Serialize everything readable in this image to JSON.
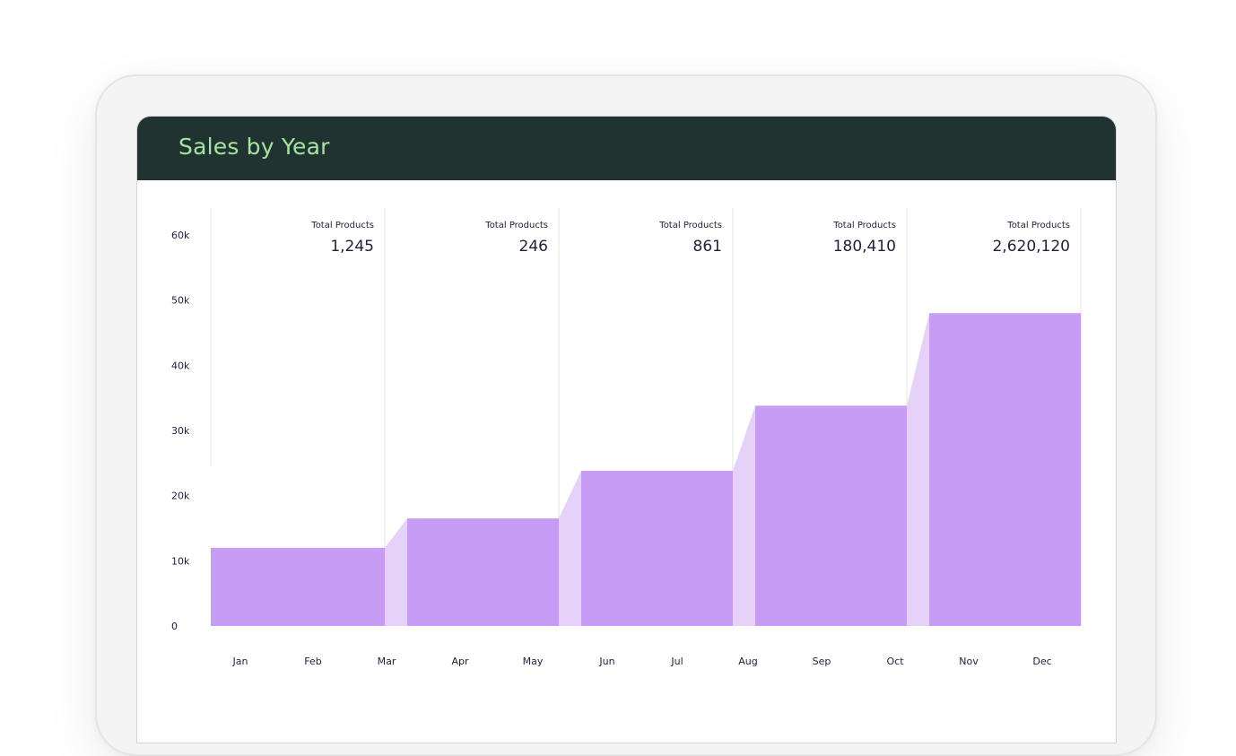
{
  "chart_data": {
    "type": "area",
    "title": "Sales by Year",
    "xlabel": "",
    "ylabel": "",
    "ylim": [
      0,
      60000
    ],
    "y_ticks": [
      "0",
      "10k",
      "20k",
      "30k",
      "40k",
      "50k",
      "60k"
    ],
    "categories": [
      "Jan",
      "Feb",
      "Mar",
      "Apr",
      "May",
      "Jun",
      "Jul",
      "Aug",
      "Sep",
      "Oct",
      "Nov",
      "Dec"
    ],
    "steps": [
      {
        "label": "Total Products",
        "total": "1,245",
        "value": 12000
      },
      {
        "label": "Total Products",
        "total": "246",
        "value": 16500
      },
      {
        "label": "Total Products",
        "total": "861",
        "value": 23800
      },
      {
        "label": "Total Products",
        "total": "180,410",
        "value": 33800
      },
      {
        "label": "Total Products",
        "total": "2,620,120",
        "value": 48000
      }
    ],
    "colors": {
      "bar": "#c79cf4",
      "transition": "#e6d1f9",
      "header": "#213331",
      "title": "#a4e4a0"
    }
  }
}
